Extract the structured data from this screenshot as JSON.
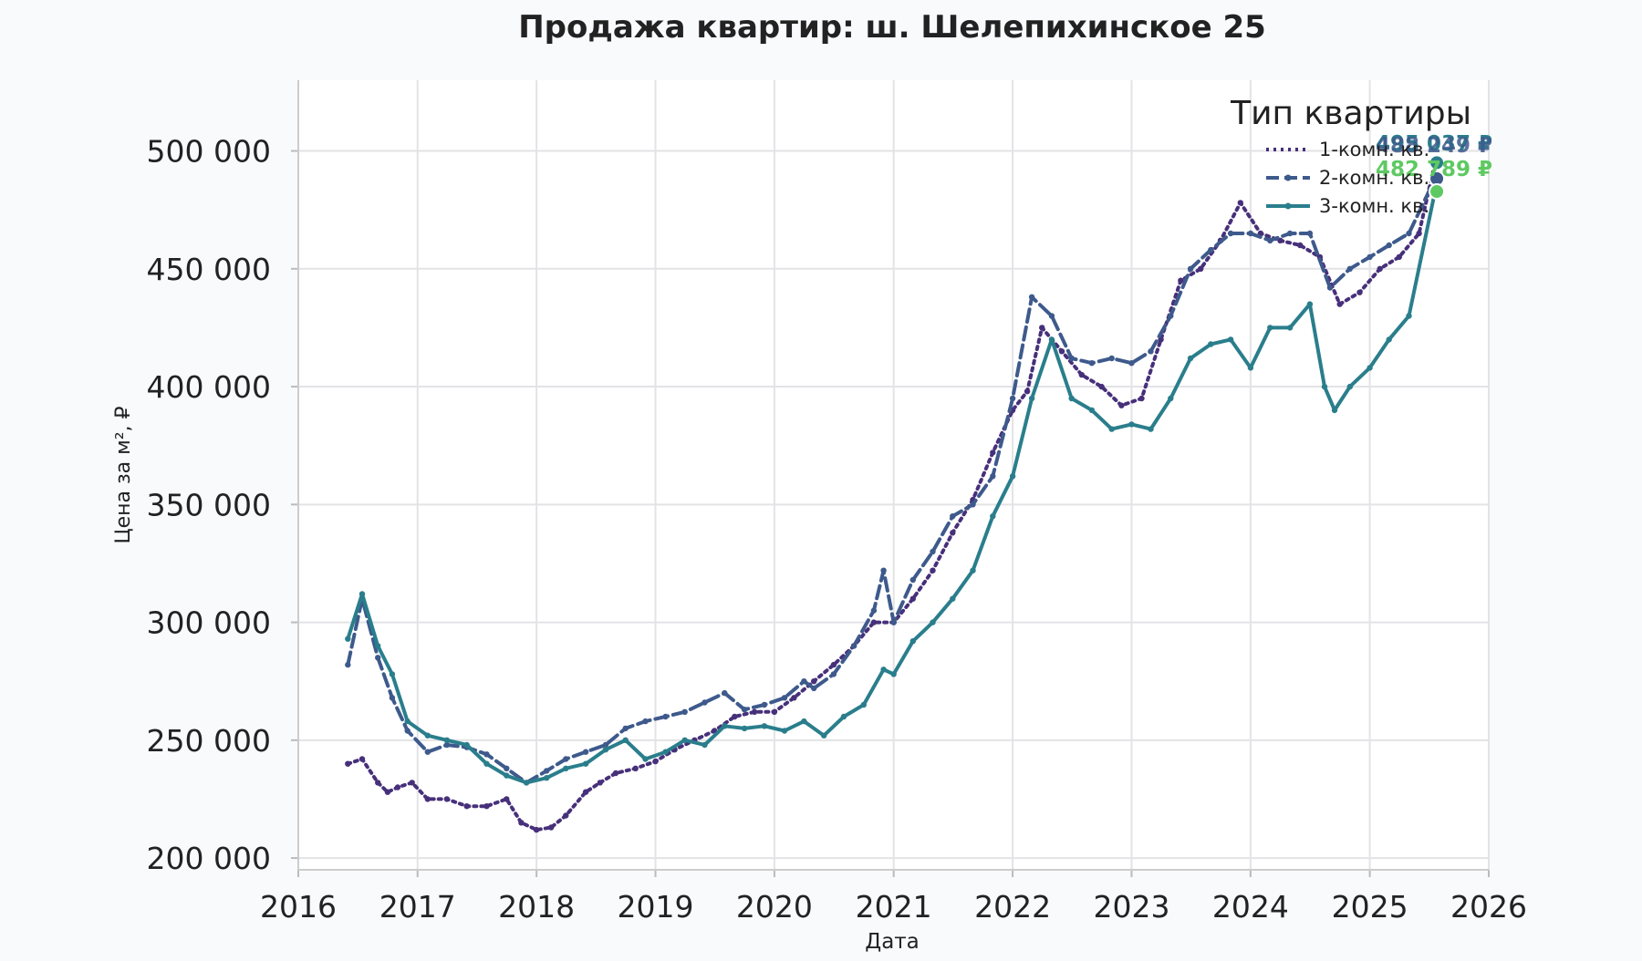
{
  "chart_data": {
    "type": "line",
    "title": "Продажа квартир: ш. Шелепихинское 25",
    "xlabel": "Дата",
    "ylabel": "Цена за м², ₽",
    "xlim": [
      "2016-01-01",
      "2026-01-01"
    ],
    "ylim": [
      195000,
      530000
    ],
    "x_ticks": [
      "2016",
      "2017",
      "2018",
      "2019",
      "2020",
      "2021",
      "2022",
      "2023",
      "2024",
      "2025",
      "2026"
    ],
    "y_ticks": [
      200000,
      250000,
      300000,
      350000,
      400000,
      450000,
      500000
    ],
    "y_tick_labels": [
      "200 000",
      "250 000",
      "300 000",
      "350 000",
      "400 000",
      "450 000",
      "500 000"
    ],
    "grid": true,
    "legend_title": "Тип квартиры",
    "legend_position": "top-right",
    "series": [
      {
        "name": "1-комн. кв.",
        "color": "#47307a",
        "style": "dotted",
        "x": [
          "2016-06-01",
          "2016-07-15",
          "2016-09-01",
          "2016-10-01",
          "2016-11-01",
          "2016-12-15",
          "2017-02-01",
          "2017-04-01",
          "2017-06-01",
          "2017-08-01",
          "2017-10-01",
          "2017-11-15",
          "2018-01-01",
          "2018-02-15",
          "2018-04-01",
          "2018-06-01",
          "2018-07-15",
          "2018-09-01",
          "2018-11-01",
          "2019-01-01",
          "2019-03-01",
          "2019-05-01",
          "2019-07-01",
          "2019-09-01",
          "2019-11-01",
          "2020-01-01",
          "2020-03-01",
          "2020-05-01",
          "2020-07-01",
          "2020-09-01",
          "2020-11-01",
          "2021-01-01",
          "2021-03-01",
          "2021-05-01",
          "2021-07-01",
          "2021-09-01",
          "2021-11-01",
          "2022-01-01",
          "2022-02-15",
          "2022-04-01",
          "2022-06-01",
          "2022-08-01",
          "2022-10-01",
          "2022-12-01",
          "2023-02-01",
          "2023-04-01",
          "2023-06-01",
          "2023-08-01",
          "2023-10-01",
          "2023-12-01",
          "2024-02-01",
          "2024-04-01",
          "2024-06-01",
          "2024-08-01",
          "2024-10-01",
          "2024-12-01",
          "2025-02-01",
          "2025-04-01",
          "2025-06-01",
          "2025-07-20"
        ],
        "values": [
          240000,
          242000,
          232000,
          228000,
          230000,
          232000,
          225000,
          225000,
          222000,
          222000,
          225000,
          215000,
          212000,
          213000,
          218000,
          228000,
          232000,
          236000,
          238000,
          241000,
          246000,
          250000,
          254000,
          260000,
          262000,
          262000,
          268000,
          275000,
          282000,
          290000,
          300000,
          300000,
          310000,
          322000,
          338000,
          352000,
          372000,
          390000,
          398000,
          425000,
          415000,
          405000,
          400000,
          392000,
          395000,
          420000,
          445000,
          450000,
          462000,
          478000,
          465000,
          462000,
          460000,
          455000,
          435000,
          440000,
          450000,
          455000,
          465000,
          495037
        ]
      },
      {
        "name": "2-комн. кв.",
        "color": "#3e5a8c",
        "style": "dashed",
        "x": [
          "2016-06-01",
          "2016-07-15",
          "2016-09-01",
          "2016-10-15",
          "2016-12-01",
          "2017-02-01",
          "2017-04-01",
          "2017-06-01",
          "2017-08-01",
          "2017-10-01",
          "2017-12-01",
          "2018-02-01",
          "2018-04-01",
          "2018-06-01",
          "2018-08-01",
          "2018-10-01",
          "2018-12-01",
          "2019-02-01",
          "2019-04-01",
          "2019-06-01",
          "2019-08-01",
          "2019-10-01",
          "2019-12-01",
          "2020-02-01",
          "2020-04-01",
          "2020-05-01",
          "2020-07-01",
          "2020-09-01",
          "2020-11-01",
          "2020-12-01",
          "2021-01-01",
          "2021-03-01",
          "2021-05-01",
          "2021-07-01",
          "2021-09-01",
          "2021-11-01",
          "2022-01-01",
          "2022-03-01",
          "2022-05-01",
          "2022-07-01",
          "2022-09-01",
          "2022-11-01",
          "2023-01-01",
          "2023-03-01",
          "2023-05-01",
          "2023-07-01",
          "2023-09-01",
          "2023-11-01",
          "2024-01-01",
          "2024-03-01",
          "2024-05-01",
          "2024-07-01",
          "2024-09-01",
          "2024-11-01",
          "2025-01-01",
          "2025-03-01",
          "2025-05-01",
          "2025-07-20"
        ],
        "values": [
          282000,
          310000,
          285000,
          268000,
          254000,
          245000,
          248000,
          247000,
          244000,
          238000,
          232000,
          237000,
          242000,
          245000,
          248000,
          255000,
          258000,
          260000,
          262000,
          266000,
          270000,
          263000,
          265000,
          268000,
          275000,
          272000,
          278000,
          290000,
          305000,
          322000,
          300000,
          318000,
          330000,
          345000,
          350000,
          362000,
          395000,
          438000,
          430000,
          412000,
          410000,
          412000,
          410000,
          415000,
          430000,
          450000,
          458000,
          465000,
          465000,
          462000,
          465000,
          465000,
          442000,
          450000,
          455000,
          460000,
          465000,
          488249
        ]
      },
      {
        "name": "3-комн. кв.",
        "color": "#2a7e8c",
        "style": "solid",
        "x": [
          "2016-06-01",
          "2016-07-15",
          "2016-09-01",
          "2016-10-15",
          "2016-12-01",
          "2017-02-01",
          "2017-04-01",
          "2017-06-01",
          "2017-08-01",
          "2017-10-01",
          "2017-12-01",
          "2018-02-01",
          "2018-04-01",
          "2018-06-01",
          "2018-08-01",
          "2018-10-01",
          "2018-12-01",
          "2019-02-01",
          "2019-04-01",
          "2019-06-01",
          "2019-08-01",
          "2019-10-01",
          "2019-12-01",
          "2020-02-01",
          "2020-04-01",
          "2020-06-01",
          "2020-08-01",
          "2020-10-01",
          "2020-12-01",
          "2021-01-01",
          "2021-03-01",
          "2021-05-01",
          "2021-07-01",
          "2021-09-01",
          "2021-11-01",
          "2022-01-01",
          "2022-03-01",
          "2022-05-01",
          "2022-07-01",
          "2022-09-01",
          "2022-11-01",
          "2023-01-01",
          "2023-03-01",
          "2023-05-01",
          "2023-07-01",
          "2023-09-01",
          "2023-11-01",
          "2024-01-01",
          "2024-03-01",
          "2024-05-01",
          "2024-07-01",
          "2024-08-15",
          "2024-09-15",
          "2024-11-01",
          "2025-01-01",
          "2025-03-01",
          "2025-05-01",
          "2025-07-20"
        ],
        "values": [
          293000,
          312000,
          290000,
          278000,
          258000,
          252000,
          250000,
          248000,
          240000,
          235000,
          232000,
          234000,
          238000,
          240000,
          246000,
          250000,
          242000,
          245000,
          250000,
          248000,
          256000,
          255000,
          256000,
          254000,
          258000,
          252000,
          260000,
          265000,
          280000,
          278000,
          292000,
          300000,
          310000,
          322000,
          345000,
          362000,
          395000,
          420000,
          395000,
          390000,
          382000,
          384000,
          382000,
          395000,
          412000,
          418000,
          420000,
          408000,
          425000,
          425000,
          435000,
          400000,
          390000,
          400000,
          408000,
          420000,
          430000,
          482789
        ]
      }
    ],
    "end_labels": [
      {
        "series": "1-комн. кв.",
        "text": "495 037 ₽",
        "value": 495037,
        "color": "#2a7e8c"
      },
      {
        "series": "2-комн. кв.",
        "text": "488 249 ₽",
        "value": 488249,
        "color": "#3e5a8c"
      },
      {
        "series": "3-комн. кв.",
        "text": "482 789 ₽",
        "value": 482789,
        "color": "#5ec962"
      }
    ]
  }
}
